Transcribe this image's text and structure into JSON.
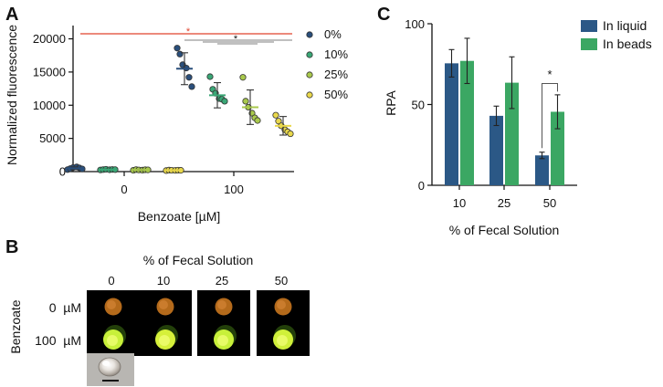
{
  "panels": {
    "a": {
      "letter": "A"
    },
    "b": {
      "letter": "B"
    },
    "c": {
      "letter": "C"
    }
  },
  "colors": {
    "c0": "#2a4f7c",
    "c10": "#3aa776",
    "c25": "#a9c94d",
    "c50": "#e9d84b",
    "liquid": "#2b5886",
    "beads": "#3ba763",
    "significance_red": "#e0442e",
    "significance_gray": "#9a9a9a"
  },
  "chart_data": [
    {
      "id": "panel-a",
      "type": "scatter",
      "title": "",
      "xlabel": "Benzoate [µM]",
      "ylabel": "Normalized fluorescence",
      "ylim": [
        0,
        22000
      ],
      "yticks": [
        0,
        5000,
        10000,
        15000,
        20000
      ],
      "categories": [
        "0",
        "100"
      ],
      "legend": [
        "0%",
        "10%",
        "25%",
        "50%"
      ],
      "legend_position": "right",
      "significance_marks": [
        "*",
        "*"
      ],
      "series": [
        {
          "name": "0%",
          "color_key": "c0",
          "category": "0",
          "mean": 500,
          "sd": 200,
          "points": [
            300,
            450,
            600,
            700,
            550,
            400
          ]
        },
        {
          "name": "10%",
          "color_key": "c10",
          "category": "0",
          "mean": 300,
          "sd": 80,
          "points": [
            250,
            300,
            350,
            280,
            320,
            300
          ]
        },
        {
          "name": "25%",
          "color_key": "c25",
          "category": "0",
          "mean": 250,
          "sd": 80,
          "points": [
            200,
            300,
            250,
            220,
            280,
            260
          ]
        },
        {
          "name": "50%",
          "color_key": "c50",
          "category": "0",
          "mean": 200,
          "sd": 60,
          "points": [
            150,
            220,
            200,
            180,
            210,
            190
          ]
        },
        {
          "name": "0%",
          "color_key": "c0",
          "category": "100",
          "mean": 15500,
          "sd": 2400,
          "points": [
            18600,
            17700,
            16100,
            15600,
            14200,
            12800
          ]
        },
        {
          "name": "10%",
          "color_key": "c10",
          "category": "100",
          "mean": 11500,
          "sd": 1900,
          "points": [
            14300,
            12400,
            11800,
            11000,
            10900,
            10600
          ]
        },
        {
          "name": "25%",
          "color_key": "c25",
          "category": "100",
          "mean": 9700,
          "sd": 2600,
          "points": [
            14200,
            10600,
            9700,
            8800,
            8100,
            7700
          ]
        },
        {
          "name": "50%",
          "color_key": "c50",
          "category": "100",
          "mean": 6900,
          "sd": 1400,
          "points": [
            8500,
            7600,
            6900,
            6300,
            6000,
            5700
          ]
        }
      ]
    },
    {
      "id": "panel-c",
      "type": "bar",
      "title": "",
      "xlabel": "% of Fecal Solution",
      "ylabel": "RPA",
      "ylim": [
        0,
        100
      ],
      "yticks": [
        0,
        50,
        100
      ],
      "categories": [
        "10",
        "25",
        "50"
      ],
      "legend_position": "top-right",
      "series": [
        {
          "name": "In liquid",
          "color_key": "liquid",
          "values": [
            75.5,
            43,
            18.5
          ],
          "errors": [
            8.5,
            6,
            2
          ]
        },
        {
          "name": "In beads",
          "color_key": "beads",
          "values": [
            77,
            63.5,
            45.5
          ],
          "errors": [
            14,
            16,
            10.5
          ]
        }
      ],
      "significance": [
        {
          "category": "50",
          "label": "*"
        }
      ]
    }
  ],
  "panel_b": {
    "title": "% of Fecal Solution",
    "columns": [
      "0",
      "10",
      "25",
      "50"
    ],
    "side_label": "Benzoate",
    "rows": [
      {
        "label": "0  µM",
        "dot_colors": [
          "#c8751e",
          "#c8751e",
          "#c8751e",
          "#c8751e"
        ]
      },
      {
        "label": "100  µM",
        "dot_colors": [
          "#c8f03a",
          "#d6f03a",
          "#c8f03a",
          "#d0f03a"
        ]
      }
    ]
  }
}
